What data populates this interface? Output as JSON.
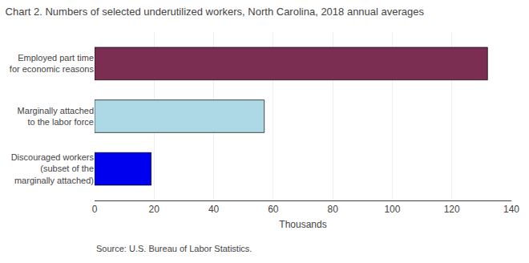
{
  "chart_data": {
    "type": "bar",
    "orientation": "horizontal",
    "title": "Chart 2. Numbers of selected underutilized workers, North Carolina, 2018 annual averages",
    "categories": [
      "Discouraged workers\n(subset of the\nmarginally attached)",
      "Marginally attached\nto the labor force",
      "Employed part time\nfor economic reasons"
    ],
    "values": [
      19,
      57,
      132
    ],
    "colors": [
      "#0000ee",
      "#add8e6",
      "#7b2d52"
    ],
    "xlabel": "Thousands",
    "xlim": [
      0,
      140
    ],
    "xticks": [
      0,
      20,
      40,
      60,
      80,
      100,
      120,
      140
    ],
    "grid": true,
    "annotations": [
      "Source: U.S. Bureau of Labor Statistics."
    ]
  }
}
